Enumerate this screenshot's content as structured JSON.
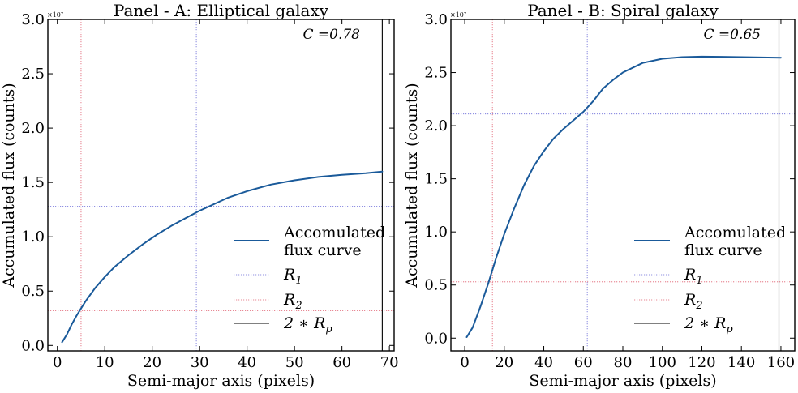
{
  "chart_data": [
    {
      "type": "line",
      "title": "Panel - A: Elliptical galaxy",
      "xlabel": "Semi-major axis (pixels)",
      "ylabel": "Accumulated flux (counts)",
      "y_multiplier": "×10⁷",
      "xlim": [
        -2,
        71
      ],
      "ylim": [
        -0.05,
        3.0
      ],
      "xticks": [
        0,
        10,
        20,
        30,
        40,
        50,
        60,
        70
      ],
      "yticks": [
        0.0,
        0.5,
        1.0,
        1.5,
        2.0,
        2.5,
        3.0
      ],
      "ytick_labels": [
        "0.0",
        "0.5",
        "1.0",
        "1.5",
        "2.0",
        "2.5",
        "3.0"
      ],
      "concentration_label": "C =0.78",
      "series": [
        {
          "name": "Accomulated flux curve",
          "color": "#1a5a9a",
          "x": [
            1,
            2,
            3,
            4,
            5,
            6,
            8,
            10,
            12,
            15,
            18,
            21,
            24,
            27,
            30,
            33,
            36,
            40,
            45,
            50,
            55,
            60,
            65,
            68.5
          ],
          "y": [
            0.03,
            0.1,
            0.19,
            0.27,
            0.34,
            0.41,
            0.53,
            0.63,
            0.72,
            0.83,
            0.93,
            1.02,
            1.1,
            1.17,
            1.24,
            1.3,
            1.36,
            1.42,
            1.48,
            1.52,
            1.55,
            1.57,
            1.585,
            1.6
          ]
        }
      ],
      "reference_lines": {
        "R1": {
          "name": "R1",
          "label_main": "R",
          "label_sub": "1",
          "color": "#6c6cd8",
          "x": 29.3,
          "y": 1.28
        },
        "R2": {
          "name": "R2",
          "label_main": "R",
          "label_sub": "2",
          "color": "#e06070",
          "x": 5.0,
          "y": 0.32
        },
        "twoRp": {
          "name": "2*Rp",
          "label_main": "2 ∗ R",
          "label_sub": "p",
          "color": "#000000",
          "x": 68.5
        }
      },
      "legend": {
        "position": "lower right",
        "curve_label_line1": "Accomulated",
        "curve_label_line2": "flux curve"
      }
    },
    {
      "type": "line",
      "title": "Panel - B: Spiral galaxy",
      "xlabel": "Semi-major axis (pixels)",
      "ylabel": "Accumulated flux (counts)",
      "y_multiplier": "×10⁷",
      "xlim": [
        -7,
        167
      ],
      "ylim": [
        -0.12,
        3.0
      ],
      "xticks": [
        0,
        20,
        40,
        60,
        80,
        100,
        120,
        140,
        160
      ],
      "yticks": [
        0.0,
        0.5,
        1.0,
        1.5,
        2.0,
        2.5,
        3.0
      ],
      "ytick_labels": [
        "0.0",
        "0.5",
        "1.0",
        "1.5",
        "2.0",
        "2.5",
        "3.0"
      ],
      "concentration_label": "C =0.65",
      "series": [
        {
          "name": "Accomulated flux curve",
          "color": "#1a5a9a",
          "x": [
            1,
            4,
            8,
            12,
            16,
            20,
            25,
            30,
            35,
            40,
            45,
            50,
            55,
            60,
            65,
            70,
            75,
            80,
            90,
            100,
            110,
            120,
            130,
            140,
            150,
            160
          ],
          "y": [
            0.01,
            0.1,
            0.3,
            0.52,
            0.76,
            0.98,
            1.22,
            1.44,
            1.62,
            1.76,
            1.88,
            1.97,
            2.05,
            2.13,
            2.23,
            2.35,
            2.43,
            2.5,
            2.59,
            2.63,
            2.645,
            2.65,
            2.648,
            2.645,
            2.642,
            2.64
          ]
        }
      ],
      "reference_lines": {
        "R1": {
          "name": "R1",
          "label_main": "R",
          "label_sub": "1",
          "color": "#6c6cd8",
          "x": 62.0,
          "y": 2.11
        },
        "R2": {
          "name": "R2",
          "label_main": "R",
          "label_sub": "2",
          "color": "#e06070",
          "x": 14.0,
          "y": 0.53
        },
        "twoRp": {
          "name": "2*Rp",
          "label_main": "2 ∗ R",
          "label_sub": "p",
          "color": "#000000",
          "x": 159.0
        }
      },
      "legend": {
        "position": "lower right",
        "curve_label_line1": "Accomulated",
        "curve_label_line2": "flux curve"
      }
    }
  ]
}
